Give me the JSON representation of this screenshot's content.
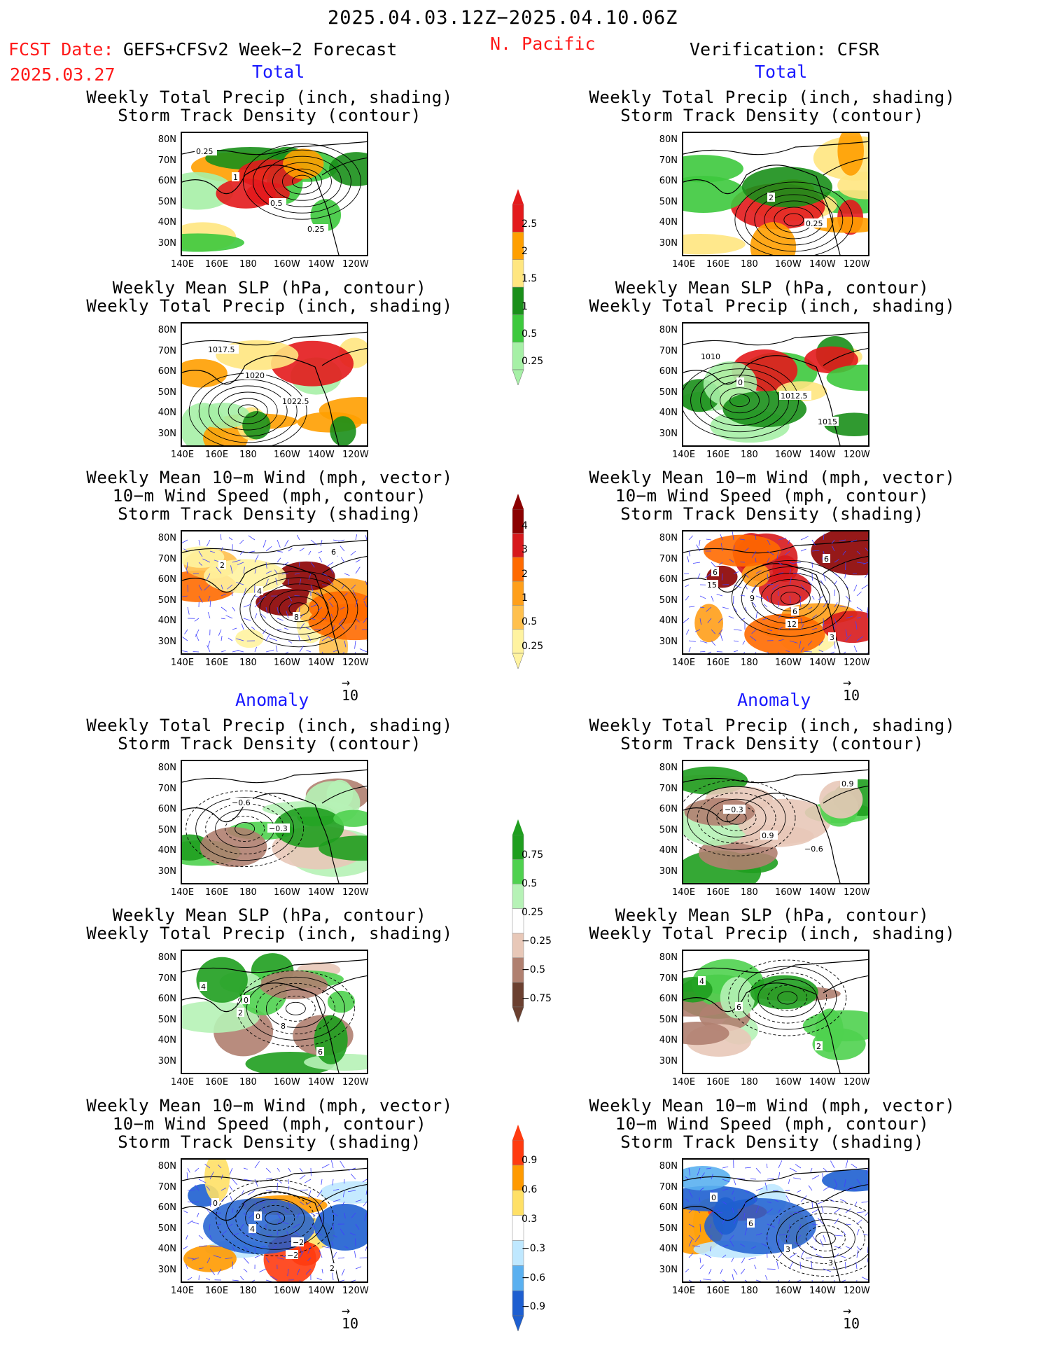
{
  "header": {
    "title": "2025.04.03.12Z−2025.04.10.06Z",
    "fcst_label": "FCST Date:",
    "fcst_model": "GEFS+CFSv2 Week−2 Forecast",
    "fcst_date": "2025.03.27",
    "region": "N. Pacific",
    "verification": "Verification: CFSR"
  },
  "sections": {
    "total": "Total",
    "anomaly": "Anomaly"
  },
  "panel_titles": {
    "precip_track": [
      "Weekly Total Precip (inch, shading)",
      "Storm Track Density (contour)"
    ],
    "slp_precip": [
      "Weekly Mean SLP (hPa, contour)",
      "Weekly Total Precip (inch, shading)"
    ],
    "wind_track": [
      "Weekly Mean 10−m Wind (mph, vector)",
      "10−m Wind Speed (mph, contour)",
      "Storm Track Density (shading)"
    ]
  },
  "axes": {
    "lat_ticks": [
      "80N",
      "70N",
      "60N",
      "50N",
      "40N",
      "30N"
    ],
    "lon_ticks": [
      "140E",
      "160E",
      "180",
      "160W",
      "140W",
      "120W"
    ],
    "vector_ref": "10"
  },
  "colorbars": {
    "precip_total": {
      "labels": [
        "2.5",
        "2",
        "1.5",
        "1",
        "0.5",
        "0.25"
      ],
      "colors": [
        "#e31a1c",
        "#ff9f00",
        "#ffe680",
        "#1a8f1a",
        "#3dc93d",
        "#a6f0a6"
      ]
    },
    "track_total": {
      "labels": [
        "4",
        "3",
        "2",
        "1",
        "0.5",
        "0.25"
      ],
      "colors": [
        "#8b0000",
        "#d7191c",
        "#ff6a00",
        "#ff9f1a",
        "#ffc04d",
        "#fff3a0"
      ]
    },
    "precip_anom": {
      "labels": [
        "0.75",
        "0.5",
        "0.25",
        "−0.25",
        "−0.5",
        "−0.75"
      ],
      "colors": [
        "#1f9e1f",
        "#4fd14f",
        "#b6f2b6",
        "#ffffff",
        "#e8c8b8",
        "#b08070",
        "#6b4030"
      ]
    },
    "track_anom": {
      "labels": [
        "0.9",
        "0.6",
        "0.3",
        "−0.3",
        "−0.6",
        "−0.9"
      ],
      "colors": [
        "#ff3b10",
        "#ff9a00",
        "#ffe066",
        "#ffffff",
        "#bfe8ff",
        "#5ab0f0",
        "#1e5fd0"
      ]
    }
  },
  "contour_labels": {
    "f_precip": [
      "0.25",
      "1",
      "0.5",
      "0.25"
    ],
    "v_precip": [
      "2",
      "0.25"
    ],
    "f_slp": [
      "1017.5",
      "1020",
      "1022.5"
    ],
    "v_slp": [
      "1012.5",
      "1015",
      "1010",
      "0"
    ],
    "f_wind": [
      "2",
      "4",
      "8",
      "6"
    ],
    "v_wind": [
      "6",
      "3",
      "6",
      "9",
      "12",
      "6",
      "15"
    ],
    "fa_precip": [
      "−0.6",
      "−0.3"
    ],
    "va_precip": [
      "−0.6",
      "0.9",
      "−0.3",
      "0.9"
    ],
    "fa_slp": [
      "0",
      "8",
      "6",
      "4",
      "2"
    ],
    "va_slp": [
      "2",
      "4",
      "6"
    ],
    "fa_wind": [
      "0",
      "−2",
      "2",
      "0",
      "4",
      "−2"
    ],
    "va_wind": [
      "3",
      "0",
      "6",
      "3"
    ]
  }
}
